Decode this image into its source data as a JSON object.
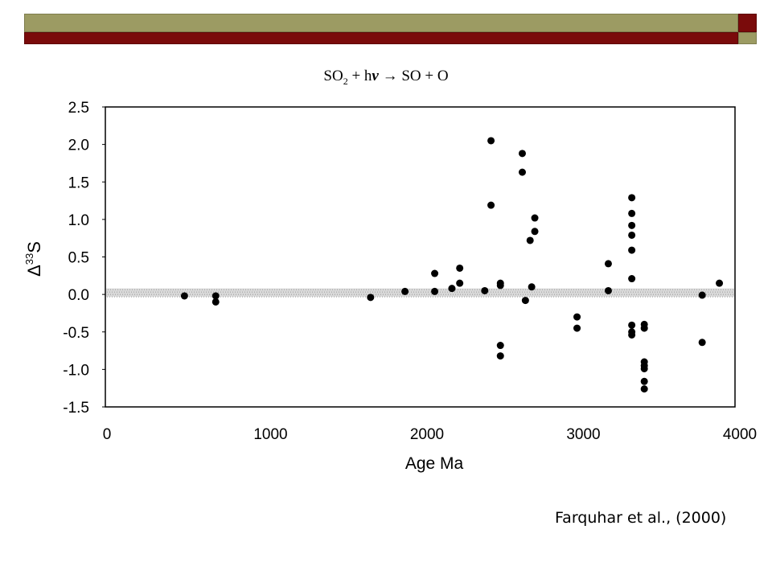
{
  "header": {
    "reaction": {
      "left": "SO",
      "sub": "2",
      "plus": " + h",
      "nu": "ν",
      "rest": " → SO + O"
    }
  },
  "citation": "Farquhar et al., (2000)",
  "colors": {
    "olive": "#9c9b63",
    "maroon": "#7a0b0b",
    "band": "#d9d9d9",
    "marker": "#000000"
  },
  "chart_data": {
    "type": "scatter",
    "xlabel": "Age Ma",
    "ylabel_prefix": "Δ",
    "ylabel_sup": "33",
    "ylabel_main": "S",
    "xlim": [
      0,
      4000
    ],
    "ylim": [
      -1.5,
      2.5
    ],
    "x_ticks": [
      "0",
      "1000",
      "2000",
      "3000",
      "4000"
    ],
    "y_ticks": [
      "2.5",
      "2.0",
      "1.5",
      "1.0",
      "0.5",
      "0.0",
      "-0.5",
      "-1.0",
      "-1.5"
    ],
    "y_tick_values": [
      2.5,
      2.0,
      1.5,
      1.0,
      0.5,
      0.0,
      -0.5,
      -1.0,
      -1.5
    ],
    "x_tick_values": [
      0,
      1000,
      2000,
      3000,
      4000
    ],
    "band": [
      -0.03,
      0.08
    ],
    "points": [
      [
        480,
        -0.02
      ],
      [
        680,
        -0.02
      ],
      [
        680,
        -0.1
      ],
      [
        1670,
        -0.04
      ],
      [
        1890,
        0.04
      ],
      [
        2080,
        0.28
      ],
      [
        2080,
        0.04
      ],
      [
        2190,
        0.08
      ],
      [
        2240,
        0.35
      ],
      [
        2240,
        0.15
      ],
      [
        2400,
        0.05
      ],
      [
        2440,
        2.05
      ],
      [
        2440,
        1.19
      ],
      [
        2500,
        0.15
      ],
      [
        2500,
        0.12
      ],
      [
        2500,
        -0.68
      ],
      [
        2500,
        -0.82
      ],
      [
        2640,
        1.88
      ],
      [
        2640,
        1.63
      ],
      [
        2660,
        -0.08
      ],
      [
        2690,
        0.72
      ],
      [
        2700,
        0.1
      ],
      [
        2720,
        1.02
      ],
      [
        2720,
        0.84
      ],
      [
        2990,
        -0.3
      ],
      [
        2990,
        -0.45
      ],
      [
        3190,
        0.41
      ],
      [
        3190,
        0.05
      ],
      [
        3340,
        1.29
      ],
      [
        3340,
        1.08
      ],
      [
        3340,
        0.92
      ],
      [
        3340,
        0.79
      ],
      [
        3340,
        0.59
      ],
      [
        3340,
        0.21
      ],
      [
        3340,
        -0.41
      ],
      [
        3340,
        -0.5
      ],
      [
        3340,
        -0.54
      ],
      [
        3420,
        -0.4
      ],
      [
        3420,
        -0.45
      ],
      [
        3420,
        -0.9
      ],
      [
        3420,
        -0.95
      ],
      [
        3420,
        -0.99
      ],
      [
        3420,
        -1.16
      ],
      [
        3420,
        -1.26
      ],
      [
        3790,
        -0.01
      ],
      [
        3790,
        -0.64
      ],
      [
        3900,
        0.15
      ]
    ]
  }
}
